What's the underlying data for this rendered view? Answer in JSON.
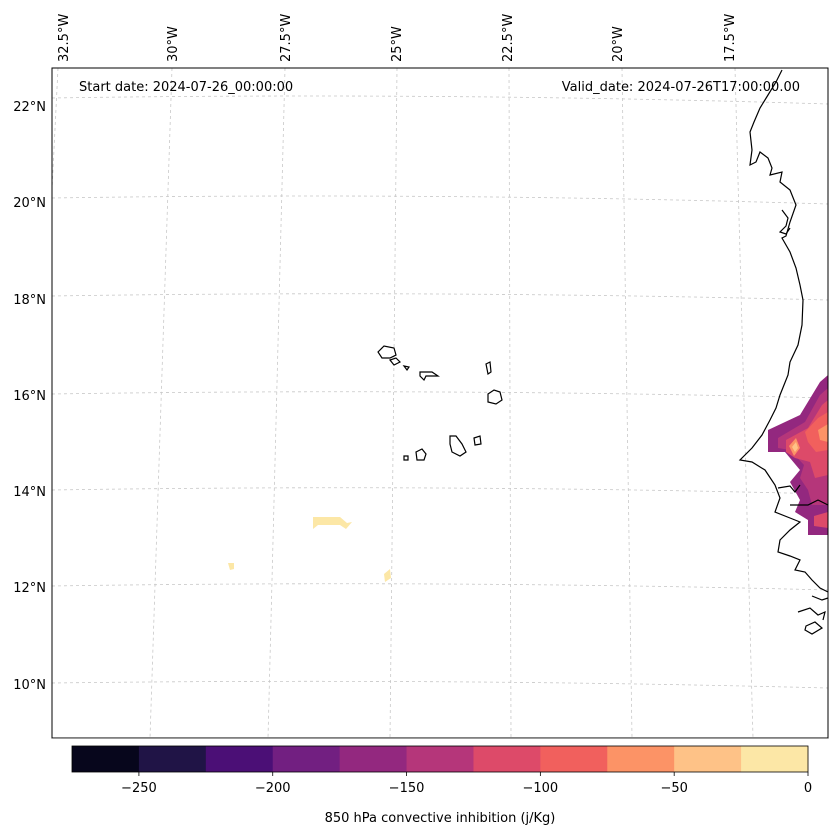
{
  "header": {
    "start_date": "Start date: 2024-07-26_00:00:00",
    "valid_date": "Valid_date: 2024-07-26T17:00:00.00"
  },
  "axes": {
    "longitude_labels": [
      "32.5°W",
      "30°W",
      "27.5°W",
      "25°W",
      "22.5°W",
      "20°W",
      "17.5°W"
    ],
    "latitude_labels": [
      "22°N",
      "20°N",
      "18°N",
      "16°N",
      "14°N",
      "12°N",
      "10°N"
    ]
  },
  "colorbar": {
    "label": "850 hPa convective inhibition (j/Kg)",
    "ticks": [
      "−250",
      "−200",
      "−150",
      "−100",
      "−50",
      "0"
    ],
    "tick_values": [
      -250,
      -200,
      -150,
      -100,
      -50,
      0
    ],
    "range": [
      -275,
      0
    ],
    "levels": [
      -275,
      -250,
      -225,
      -200,
      -175,
      -150,
      -125,
      -100,
      -75,
      -50,
      -25,
      0
    ],
    "colors": [
      "#07061c",
      "#201446",
      "#4b0f76",
      "#721f81",
      "#93287f",
      "#b5367a",
      "#dd4a69",
      "#f1605d",
      "#fc9366",
      "#fec287",
      "#fce7a6"
    ]
  },
  "chart_data": {
    "type": "heatmap",
    "title": "",
    "variable": "850 hPa convective inhibition (j/Kg)",
    "start_date": "2024-07-26_00:00:00",
    "valid_date": "2024-07-26T17:00:00.00",
    "lon_range": [
      -33,
      -16.5
    ],
    "lat_range": [
      9,
      22.5
    ],
    "levels": [
      -275,
      -250,
      -225,
      -200,
      -175,
      -150,
      -125,
      -100,
      -75,
      -50,
      -25,
      0
    ]
  }
}
